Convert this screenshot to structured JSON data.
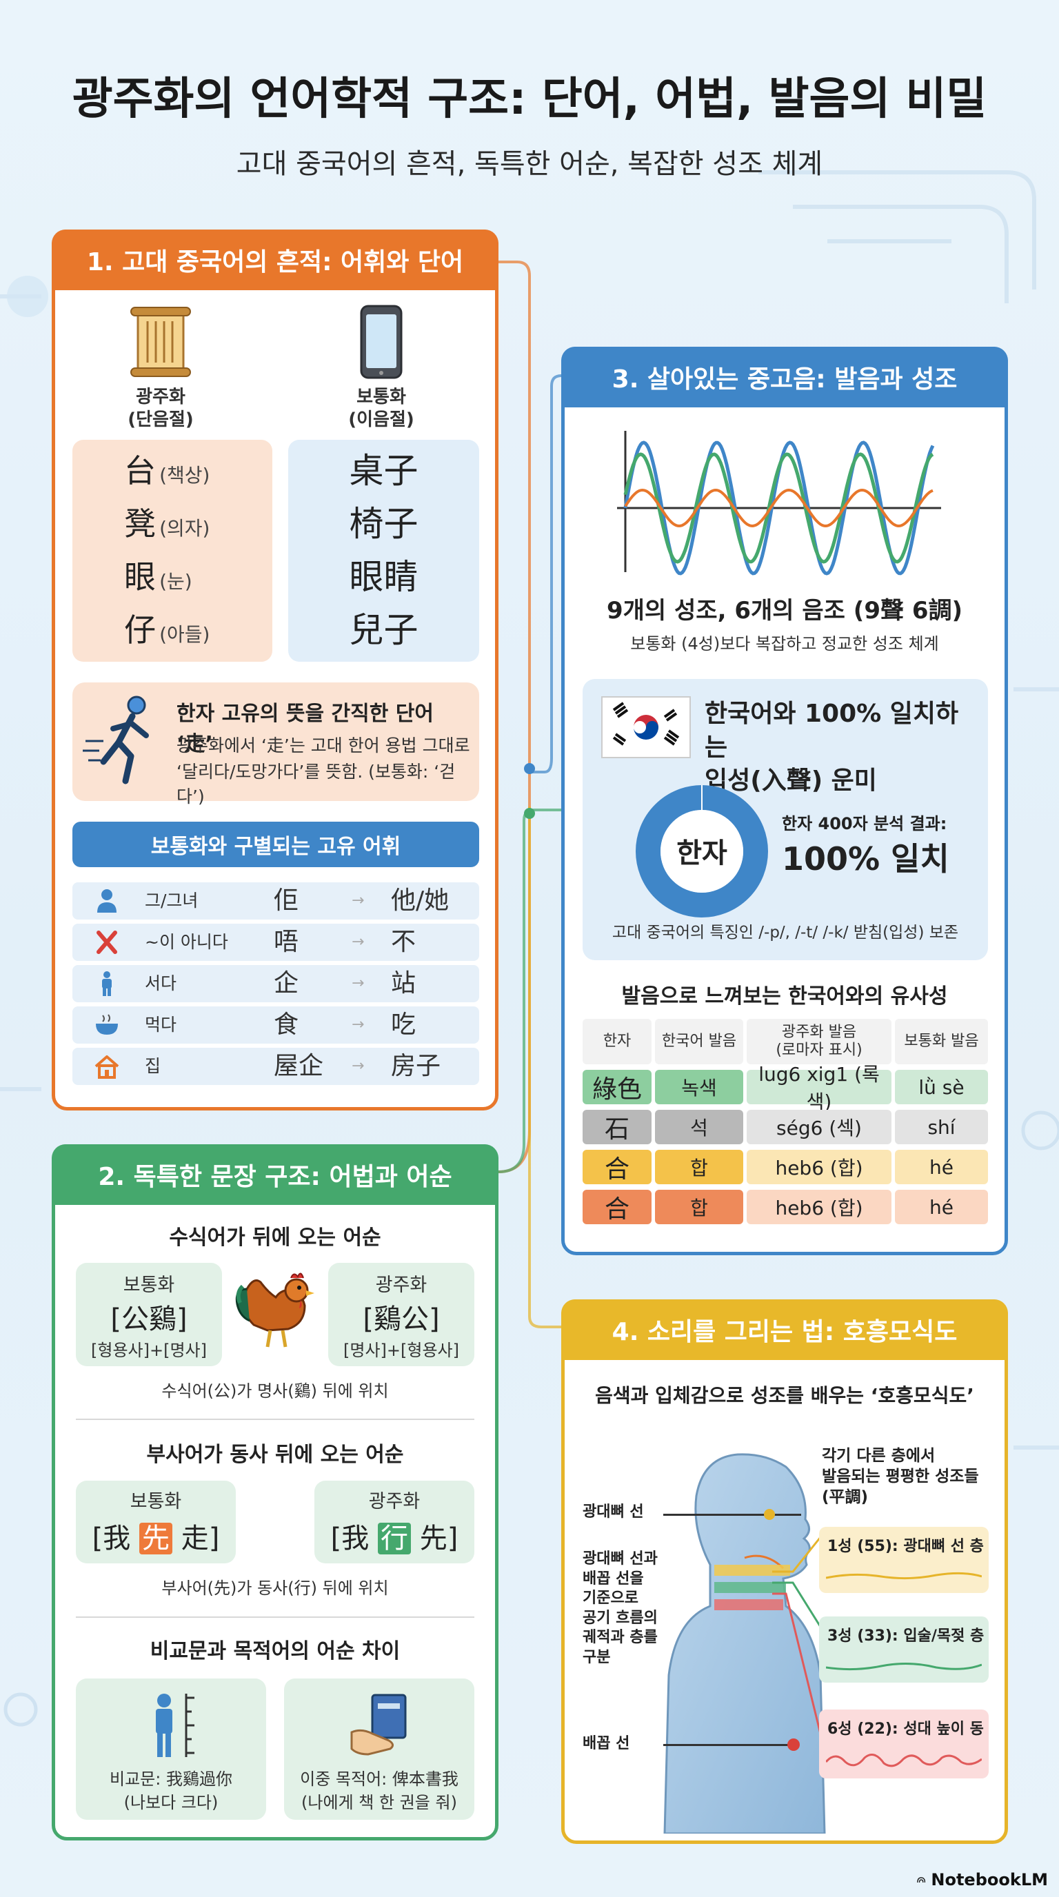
{
  "header": {
    "title": "광주화의 언어학적 구조: 단어, 어법, 발음의 비밀",
    "subtitle": "고대 중국어의 흔적, 독특한 어순, 복잡한 성조 체계"
  },
  "panel1": {
    "title": "1. 고대 중국어의 흔적: 어휘와 단어",
    "left_label": "광주화\n(단음절)",
    "right_label": "보통화\n(이음절)",
    "left_icon": "scroll-icon",
    "right_icon": "smartphone-icon",
    "pairs": [
      {
        "char": "台",
        "gloss": "(책상)",
        "mandarin": "桌子"
      },
      {
        "char": "凳",
        "gloss": "(의자)",
        "mandarin": "椅子"
      },
      {
        "char": "眼",
        "gloss": "(눈)",
        "mandarin": "眼睛"
      },
      {
        "char": "仔",
        "gloss": "(아들)",
        "mandarin": "兒子"
      }
    ],
    "run_title": "한자 고유의 뜻을 간직한 단어 ‘走’",
    "run_line1": "광주화에서 ‘走’는 고대 한어 용법 그대로",
    "run_line2": "‘달리다/도망가다’를 뜻함. (보통화: ‘걷다’)",
    "vocab_title": "보통화와 구별되는 고유 어휘",
    "vocab": [
      {
        "icon": "person-icon",
        "meaning": "그/그녀",
        "cantonese": "佢",
        "arrow": "→",
        "mandarin": "他/她"
      },
      {
        "icon": "cross-icon",
        "meaning": "~이 아니다",
        "cantonese": "唔",
        "arrow": "→",
        "mandarin": "不"
      },
      {
        "icon": "standing-person-icon",
        "meaning": "서다",
        "cantonese": "企",
        "arrow": "→",
        "mandarin": "站"
      },
      {
        "icon": "bowl-icon",
        "meaning": "먹다",
        "cantonese": "食",
        "arrow": "→",
        "mandarin": "吃"
      },
      {
        "icon": "house-icon",
        "meaning": "집",
        "cantonese": "屋企",
        "arrow": "→",
        "mandarin": "房子"
      }
    ]
  },
  "panel2": {
    "title": "2. 독특한 문장 구조: 어법과 어순",
    "s1_title": "수식어가 뒤에 오는 어순",
    "s1_left": {
      "label": "보통화",
      "phrase": "[公鷄]",
      "parts": "[형용사]+[명사]"
    },
    "s1_right": {
      "label": "광주화",
      "phrase": "[鷄公]",
      "parts": "[명사]+[형용사]"
    },
    "s1_note": "수식어(公)가 명사(鷄) 뒤에 위치",
    "s2_title": "부사어가 동사 뒤에 오는 어순",
    "s2_left": {
      "label": "보통화",
      "open": "[我 ",
      "hl": "先",
      "close": " 走]"
    },
    "s2_right": {
      "label": "광주화",
      "open": "[我 ",
      "hl": "行",
      "close": " 先]"
    },
    "s2_note": "부사어(先)가 동사(行) 뒤에 위치",
    "s3_title": "비교문과 목적어의 어순 차이",
    "s3_left": {
      "line1": "비교문: 我鷄過你",
      "line2": "(나보다 크다)"
    },
    "s3_right": {
      "line1": "이중 목적어: 俾本書我",
      "line2": "(나에게 책 한 권을 줘)"
    }
  },
  "panel3": {
    "title": "3. 살아있는 중고음: 발음과 성조",
    "tones_title": "9개의 성조, 6개의 음조 (9聲 6調)",
    "tones_sub": "보통화 (4성)보다 복잡하고 정교한 성조 체계",
    "korean_title_l1": "한국어와 100% 일치하는",
    "korean_title_l2": "입성(入聲) 운미",
    "donut_label": "한자",
    "result_label": "한자 400자 분석 결과:",
    "result_value": "100% 일치",
    "result_percent": 100,
    "preserve_note": "고대 중국어의 특징인 /-p/, /-t/ /-k/ 받침(입성) 보존",
    "table_title": "발음으로 느껴보는 한국어와의 유사성",
    "table_headers": [
      "한자",
      "한국어 발음",
      "광주화 발음\n(로마자 표시)",
      "보통화 발음"
    ],
    "table_rows": [
      {
        "hanzi": "綠色",
        "korean": "녹색",
        "cantonese": "lug6 xig1 (록색)",
        "mandarin": "lǜ sè",
        "color": "#cfe9d6",
        "accent": "#8dce9f"
      },
      {
        "hanzi": "石",
        "korean": "석",
        "cantonese": "ség6 (섹)",
        "mandarin": "shí",
        "color": "#e3e3e3",
        "accent": "#b8b8b8"
      },
      {
        "hanzi": "合",
        "korean": "합",
        "cantonese": "heb6 (합)",
        "mandarin": "hé",
        "color": "#fbe6b4",
        "accent": "#f4c24a"
      },
      {
        "hanzi": "合",
        "korean": "합",
        "cantonese": "heb6 (합)",
        "mandarin": "hé",
        "color": "#fbd7c2",
        "accent": "#ee8a5a"
      }
    ]
  },
  "panel4": {
    "title": "4. 소리를 그리는 법: 호흥모식도",
    "subtitle": "음색과 입체감으로 성조를 배우는 ‘호흥모식도’",
    "side_note": "각기 다른 층에서\n발음되는 평평한 성조들\n(平調)",
    "label_cheek": "광대뼈 선",
    "label_mid": "광대뼈 선과\n배꼽 선을\n기준으로\n공기 흐름의\n궤적과 층를\n구분",
    "label_navel": "배꼽 선",
    "tones": [
      {
        "text": "1성 (55): 광대뼈 선 층",
        "color": "#fbeecb",
        "line": "#e6b42a"
      },
      {
        "text": "3성 (33): 입술/목젖 층",
        "color": "#dcefe4",
        "line": "#45a86d"
      },
      {
        "text": "6성 (22): 성대 높이 동",
        "color": "#fbdcdc",
        "line": "#e05a5a"
      }
    ]
  },
  "footer": {
    "brand": "NotebookLM"
  }
}
